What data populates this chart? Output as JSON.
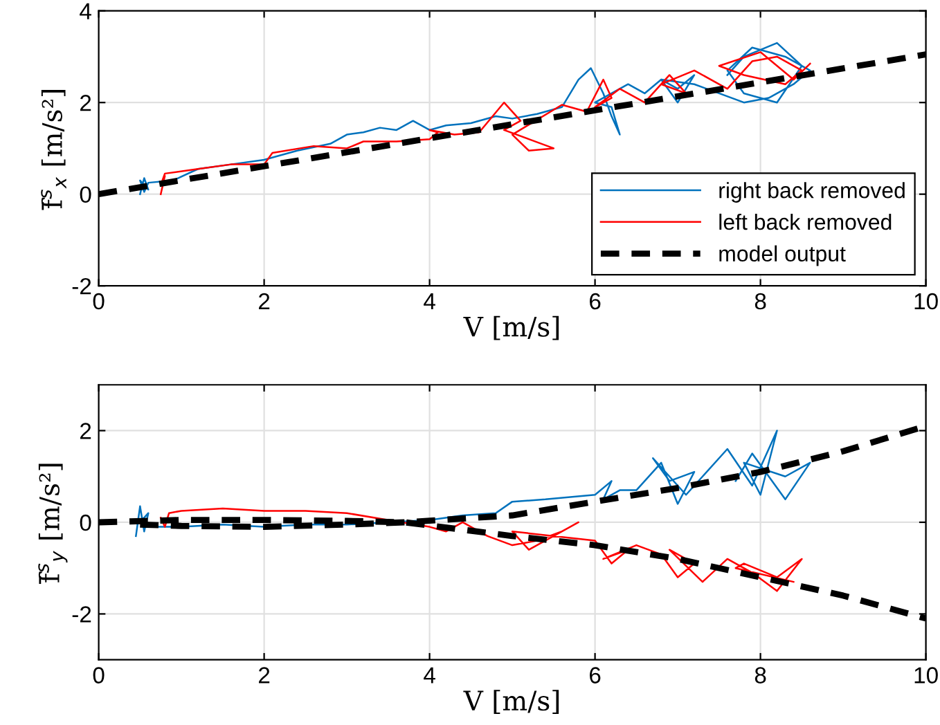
{
  "chart_data": [
    {
      "type": "line",
      "xlabel": "V [m/s]",
      "ylabel": "f̄$^{s}$$_{x}$ [m/s²]",
      "xlim": [
        0,
        10
      ],
      "xticks": [
        0,
        2,
        4,
        6,
        8,
        10
      ],
      "ylim": [
        -2,
        4
      ],
      "yticks": [
        -2,
        0,
        2,
        4
      ],
      "grid": true,
      "legend": "bottom right",
      "series": [
        {
          "name": "right back removed",
          "color": "#0072bd",
          "line_style": "solid",
          "x": [
            0.5,
            0.55,
            0.6,
            0.5,
            0.55,
            0.6,
            0.9,
            1.2,
            1.6,
            2.0,
            2.4,
            2.8,
            3.0,
            3.2,
            3.4,
            3.6,
            3.8,
            4.0,
            4.2,
            4.5,
            4.8,
            5.0,
            5.3,
            5.6,
            5.8,
            5.95,
            6.1,
            6.2,
            6.3,
            6.2,
            6.0,
            6.4,
            6.6,
            6.8,
            7.0,
            7.2,
            7.0,
            6.8,
            7.2,
            7.5,
            7.8,
            8.1,
            8.4,
            8.6,
            8.3,
            7.9,
            7.6,
            7.8,
            8.2,
            8.5,
            8.2,
            7.8,
            7.6
          ],
          "values": [
            0.0,
            0.35,
            0.1,
            0.3,
            0.05,
            0.25,
            0.3,
            0.55,
            0.65,
            0.75,
            0.95,
            1.1,
            1.3,
            1.35,
            1.45,
            1.4,
            1.6,
            1.4,
            1.5,
            1.55,
            1.7,
            1.65,
            1.75,
            1.9,
            2.5,
            2.75,
            2.2,
            1.7,
            1.3,
            1.9,
            2.0,
            2.4,
            2.2,
            2.5,
            2.3,
            2.6,
            2.0,
            2.5,
            2.4,
            2.2,
            2.0,
            2.1,
            2.4,
            2.7,
            3.0,
            3.2,
            2.7,
            2.2,
            2.0,
            2.8,
            3.3,
            3.0,
            2.6
          ]
        },
        {
          "name": "left back removed",
          "color": "#ff0000",
          "line_style": "solid",
          "x": [
            0.75,
            0.8,
            0.75,
            0.8,
            1.2,
            1.6,
            2.0,
            2.1,
            2.6,
            3.0,
            3.2,
            3.6,
            4.0,
            4.1,
            4.0,
            4.3,
            4.6,
            4.9,
            5.1,
            4.9,
            5.2,
            5.5,
            5.2,
            5.0,
            5.6,
            5.9,
            6.1,
            6.2,
            6.0,
            6.3,
            6.6,
            6.9,
            7.1,
            6.8,
            7.2,
            7.6,
            7.9,
            8.2,
            8.5,
            8.3,
            7.8,
            7.5,
            8.0,
            8.4,
            8.6
          ],
          "values": [
            0.0,
            0.4,
            0.2,
            0.45,
            0.55,
            0.65,
            0.65,
            0.9,
            1.05,
            1.0,
            1.15,
            1.15,
            1.2,
            1.35,
            1.4,
            1.3,
            1.35,
            2.0,
            1.6,
            1.4,
            1.2,
            1.0,
            0.95,
            1.3,
            1.95,
            1.8,
            2.5,
            2.1,
            1.9,
            2.3,
            2.0,
            2.6,
            2.2,
            2.4,
            2.7,
            2.3,
            2.9,
            3.0,
            2.7,
            2.4,
            2.6,
            2.8,
            3.1,
            2.5,
            2.85
          ]
        },
        {
          "name": "model output",
          "color": "#000000",
          "line_style": "dashed",
          "x": [
            0,
            10
          ],
          "values": [
            0,
            3.05
          ]
        }
      ]
    },
    {
      "type": "line",
      "xlabel": "V [m/s]",
      "ylabel": "f̄$^{s}$$_{y}$ [m/s²]",
      "xlim": [
        0,
        10
      ],
      "xticks": [
        0,
        2,
        4,
        6,
        8,
        10
      ],
      "ylim": [
        -3,
        3
      ],
      "yticks": [
        -2,
        0,
        2
      ],
      "grid": true,
      "series": [
        {
          "color": "#0072bd",
          "line_style": "solid",
          "x": [
            0.45,
            0.5,
            0.55,
            0.6,
            0.5,
            0.65,
            1.0,
            1.5,
            2.0,
            2.5,
            3.0,
            3.5,
            4.0,
            4.4,
            4.8,
            5.0,
            5.4,
            5.7,
            6.0,
            6.2,
            6.1,
            6.3,
            6.5,
            6.8,
            7.0,
            7.2,
            6.9,
            6.7,
            7.1,
            7.3,
            7.6,
            7.9,
            8.2,
            8.0,
            7.8,
            8.3,
            8.6,
            8.3,
            7.9,
            7.7
          ],
          "values": [
            -0.3,
            0.35,
            -0.2,
            0.2,
            0.0,
            -0.1,
            -0.1,
            -0.05,
            -0.1,
            -0.05,
            -0.05,
            0.0,
            0.05,
            0.15,
            0.2,
            0.45,
            0.5,
            0.55,
            0.6,
            0.9,
            0.5,
            0.7,
            0.7,
            1.3,
            0.4,
            1.1,
            0.9,
            1.4,
            0.6,
            1.0,
            1.6,
            0.8,
            2.0,
            0.6,
            1.3,
            1.0,
            1.3,
            0.5,
            1.5,
            0.9
          ]
        },
        {
          "color": "#ff0000",
          "line_style": "solid",
          "x": [
            0.75,
            0.8,
            0.85,
            1.0,
            1.5,
            2.0,
            2.5,
            3.0,
            3.5,
            4.0,
            4.2,
            4.4,
            4.7,
            5.0,
            5.3,
            5.6,
            5.8,
            5.2,
            5.0,
            6.0,
            6.2,
            6.4,
            6.1,
            6.5,
            6.8,
            7.0,
            7.2,
            6.9,
            7.3,
            7.6,
            7.9,
            8.2,
            8.5,
            8.2,
            7.8,
            7.7,
            8.4
          ],
          "values": [
            0.1,
            -0.1,
            0.2,
            0.25,
            0.3,
            0.25,
            0.25,
            0.2,
            0.05,
            -0.1,
            -0.2,
            0.0,
            -0.3,
            -0.5,
            -0.4,
            -0.2,
            0.0,
            -0.6,
            -0.2,
            -0.4,
            -0.9,
            -0.6,
            -0.8,
            -0.5,
            -0.7,
            -1.2,
            -0.9,
            -0.6,
            -1.3,
            -0.8,
            -1.1,
            -1.5,
            -0.8,
            -1.2,
            -0.9,
            -1.0,
            -1.3
          ]
        },
        {
          "color": "#000000",
          "line_style": "dashed",
          "x": [
            0,
            1,
            2,
            3,
            3.7,
            5,
            6,
            7,
            8,
            9,
            10
          ],
          "values": [
            0,
            0.05,
            0.05,
            0.03,
            0,
            -0.3,
            -0.5,
            -0.8,
            -1.2,
            -1.6,
            -2.1
          ]
        },
        {
          "color": "#000000",
          "line_style": "dashed",
          "x": [
            0.5,
            1,
            2,
            3,
            3.7,
            5,
            6,
            7,
            8,
            9,
            10
          ],
          "values": [
            -0.05,
            -0.08,
            -0.1,
            -0.05,
            0,
            0.15,
            0.45,
            0.75,
            1.1,
            1.55,
            2.1
          ]
        }
      ]
    }
  ]
}
